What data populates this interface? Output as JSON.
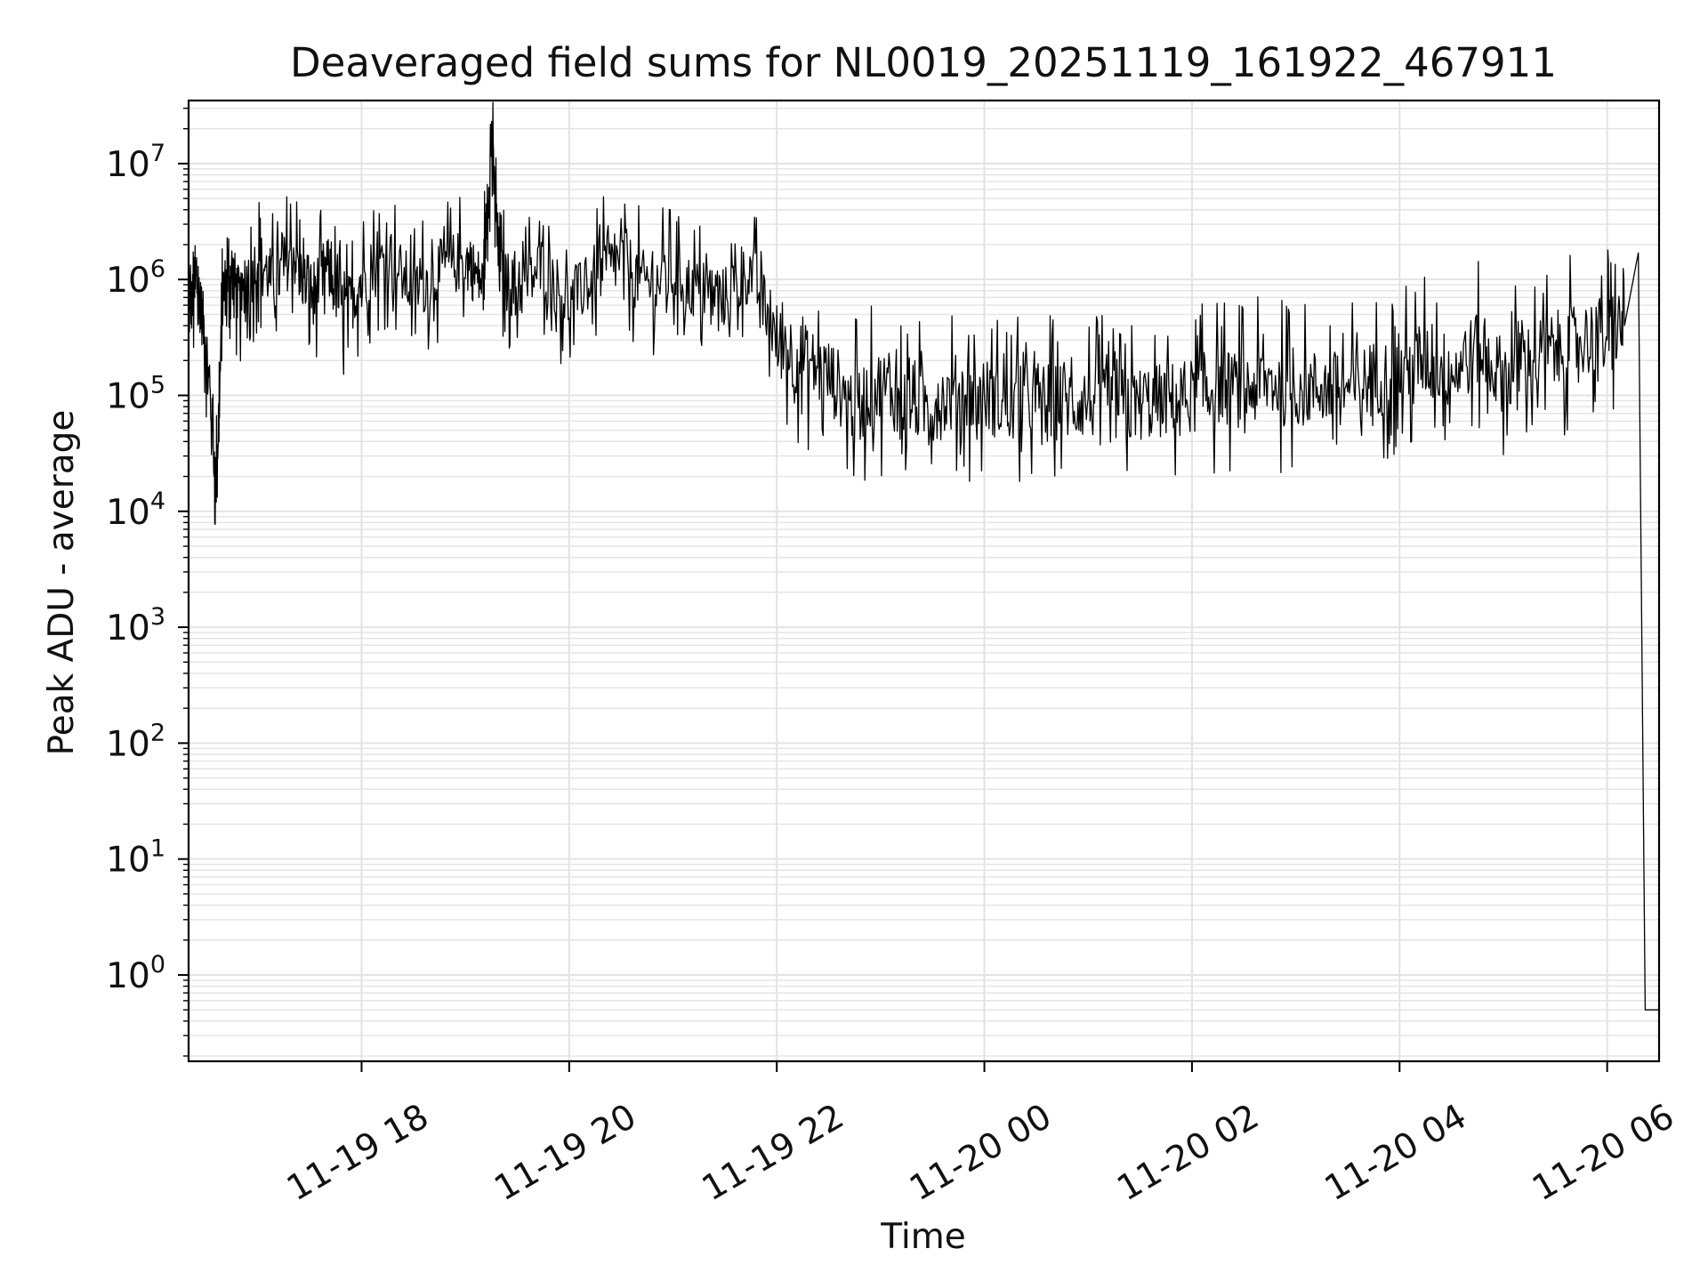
{
  "chart_data": {
    "type": "line",
    "title": "Deaveraged field sums for NL0019_20251119_161922_467911",
    "xlabel": "Time",
    "ylabel": "Peak ADU - average",
    "yscale": "log",
    "ylim": [
      0.18,
      35000000.0
    ],
    "xlim": [
      "11-19 16:20",
      "11-20 06:30"
    ],
    "grid": true,
    "line_color": "#000000",
    "x_tick_labels": [
      "11-19 18",
      "11-19 20",
      "11-19 22",
      "11-20 00",
      "11-20 02",
      "11-20 04",
      "11-20 06"
    ],
    "y_tick_labels": [
      {
        "base": "10",
        "exp": "0"
      },
      {
        "base": "10",
        "exp": "1"
      },
      {
        "base": "10",
        "exp": "2"
      },
      {
        "base": "10",
        "exp": "3"
      },
      {
        "base": "10",
        "exp": "4"
      },
      {
        "base": "10",
        "exp": "5"
      },
      {
        "base": "10",
        "exp": "6"
      },
      {
        "base": "10",
        "exp": "7"
      }
    ],
    "series": [
      {
        "x": [
          "11-19 16:20",
          "11-19 16:25",
          "11-19 16:30",
          "11-19 16:36",
          "11-19 16:40",
          "11-19 16:45",
          "11-19 16:50",
          "11-19 17:00",
          "11-19 17:10",
          "11-19 17:20",
          "11-19 17:30",
          "11-19 17:40",
          "11-19 17:50",
          "11-19 18:00",
          "11-19 18:15",
          "11-19 18:30",
          "11-19 18:45",
          "11-19 19:00",
          "11-19 19:10",
          "11-19 19:15",
          "11-19 19:20",
          "11-19 19:30",
          "11-19 19:45",
          "11-19 20:00",
          "11-19 20:15",
          "11-19 20:30",
          "11-19 20:45",
          "11-19 21:00",
          "11-19 21:15",
          "11-19 21:30",
          "11-19 21:45",
          "11-19 22:00",
          "11-19 22:15",
          "11-19 22:30",
          "11-19 22:45",
          "11-19 23:00",
          "11-19 23:15",
          "11-19 23:30",
          "11-19 23:45",
          "11-20 00:00",
          "11-20 00:15",
          "11-20 00:30",
          "11-20 00:45",
          "11-20 01:00",
          "11-20 01:15",
          "11-20 01:30",
          "11-20 01:45",
          "11-20 02:00",
          "11-20 02:15",
          "11-20 02:30",
          "11-20 02:45",
          "11-20 03:00",
          "11-20 03:15",
          "11-20 03:30",
          "11-20 03:45",
          "11-20 04:00",
          "11-20 04:15",
          "11-20 04:30",
          "11-20 04:45",
          "11-20 05:00",
          "11-20 05:15",
          "11-20 05:30",
          "11-20 05:45",
          "11-20 06:00",
          "11-20 06:10",
          "11-20 06:18",
          "11-20 06:22",
          "11-20 06:30"
        ],
        "y": [
          500000,
          900000,
          300000,
          17000,
          800000,
          1200000,
          600000,
          1500000,
          900000,
          1800000,
          700000,
          1300000,
          500000,
          1000000,
          1600000,
          800000,
          1200000,
          1500000,
          900000,
          15000000,
          1100000,
          800000,
          1300000,
          600000,
          1100000,
          1500000,
          900000,
          1100000,
          800000,
          700000,
          1200000,
          300000,
          200000,
          150000,
          80000,
          120000,
          90000,
          80000,
          110000,
          100000,
          80000,
          95000,
          85000,
          90000,
          80000,
          85000,
          90000,
          100000,
          120000,
          110000,
          130000,
          110000,
          120000,
          110000,
          140000,
          150000,
          200000,
          160000,
          250000,
          150000,
          200000,
          250000,
          300000,
          350000,
          400000,
          1700000,
          0.5,
          0.5
        ]
      }
    ]
  }
}
